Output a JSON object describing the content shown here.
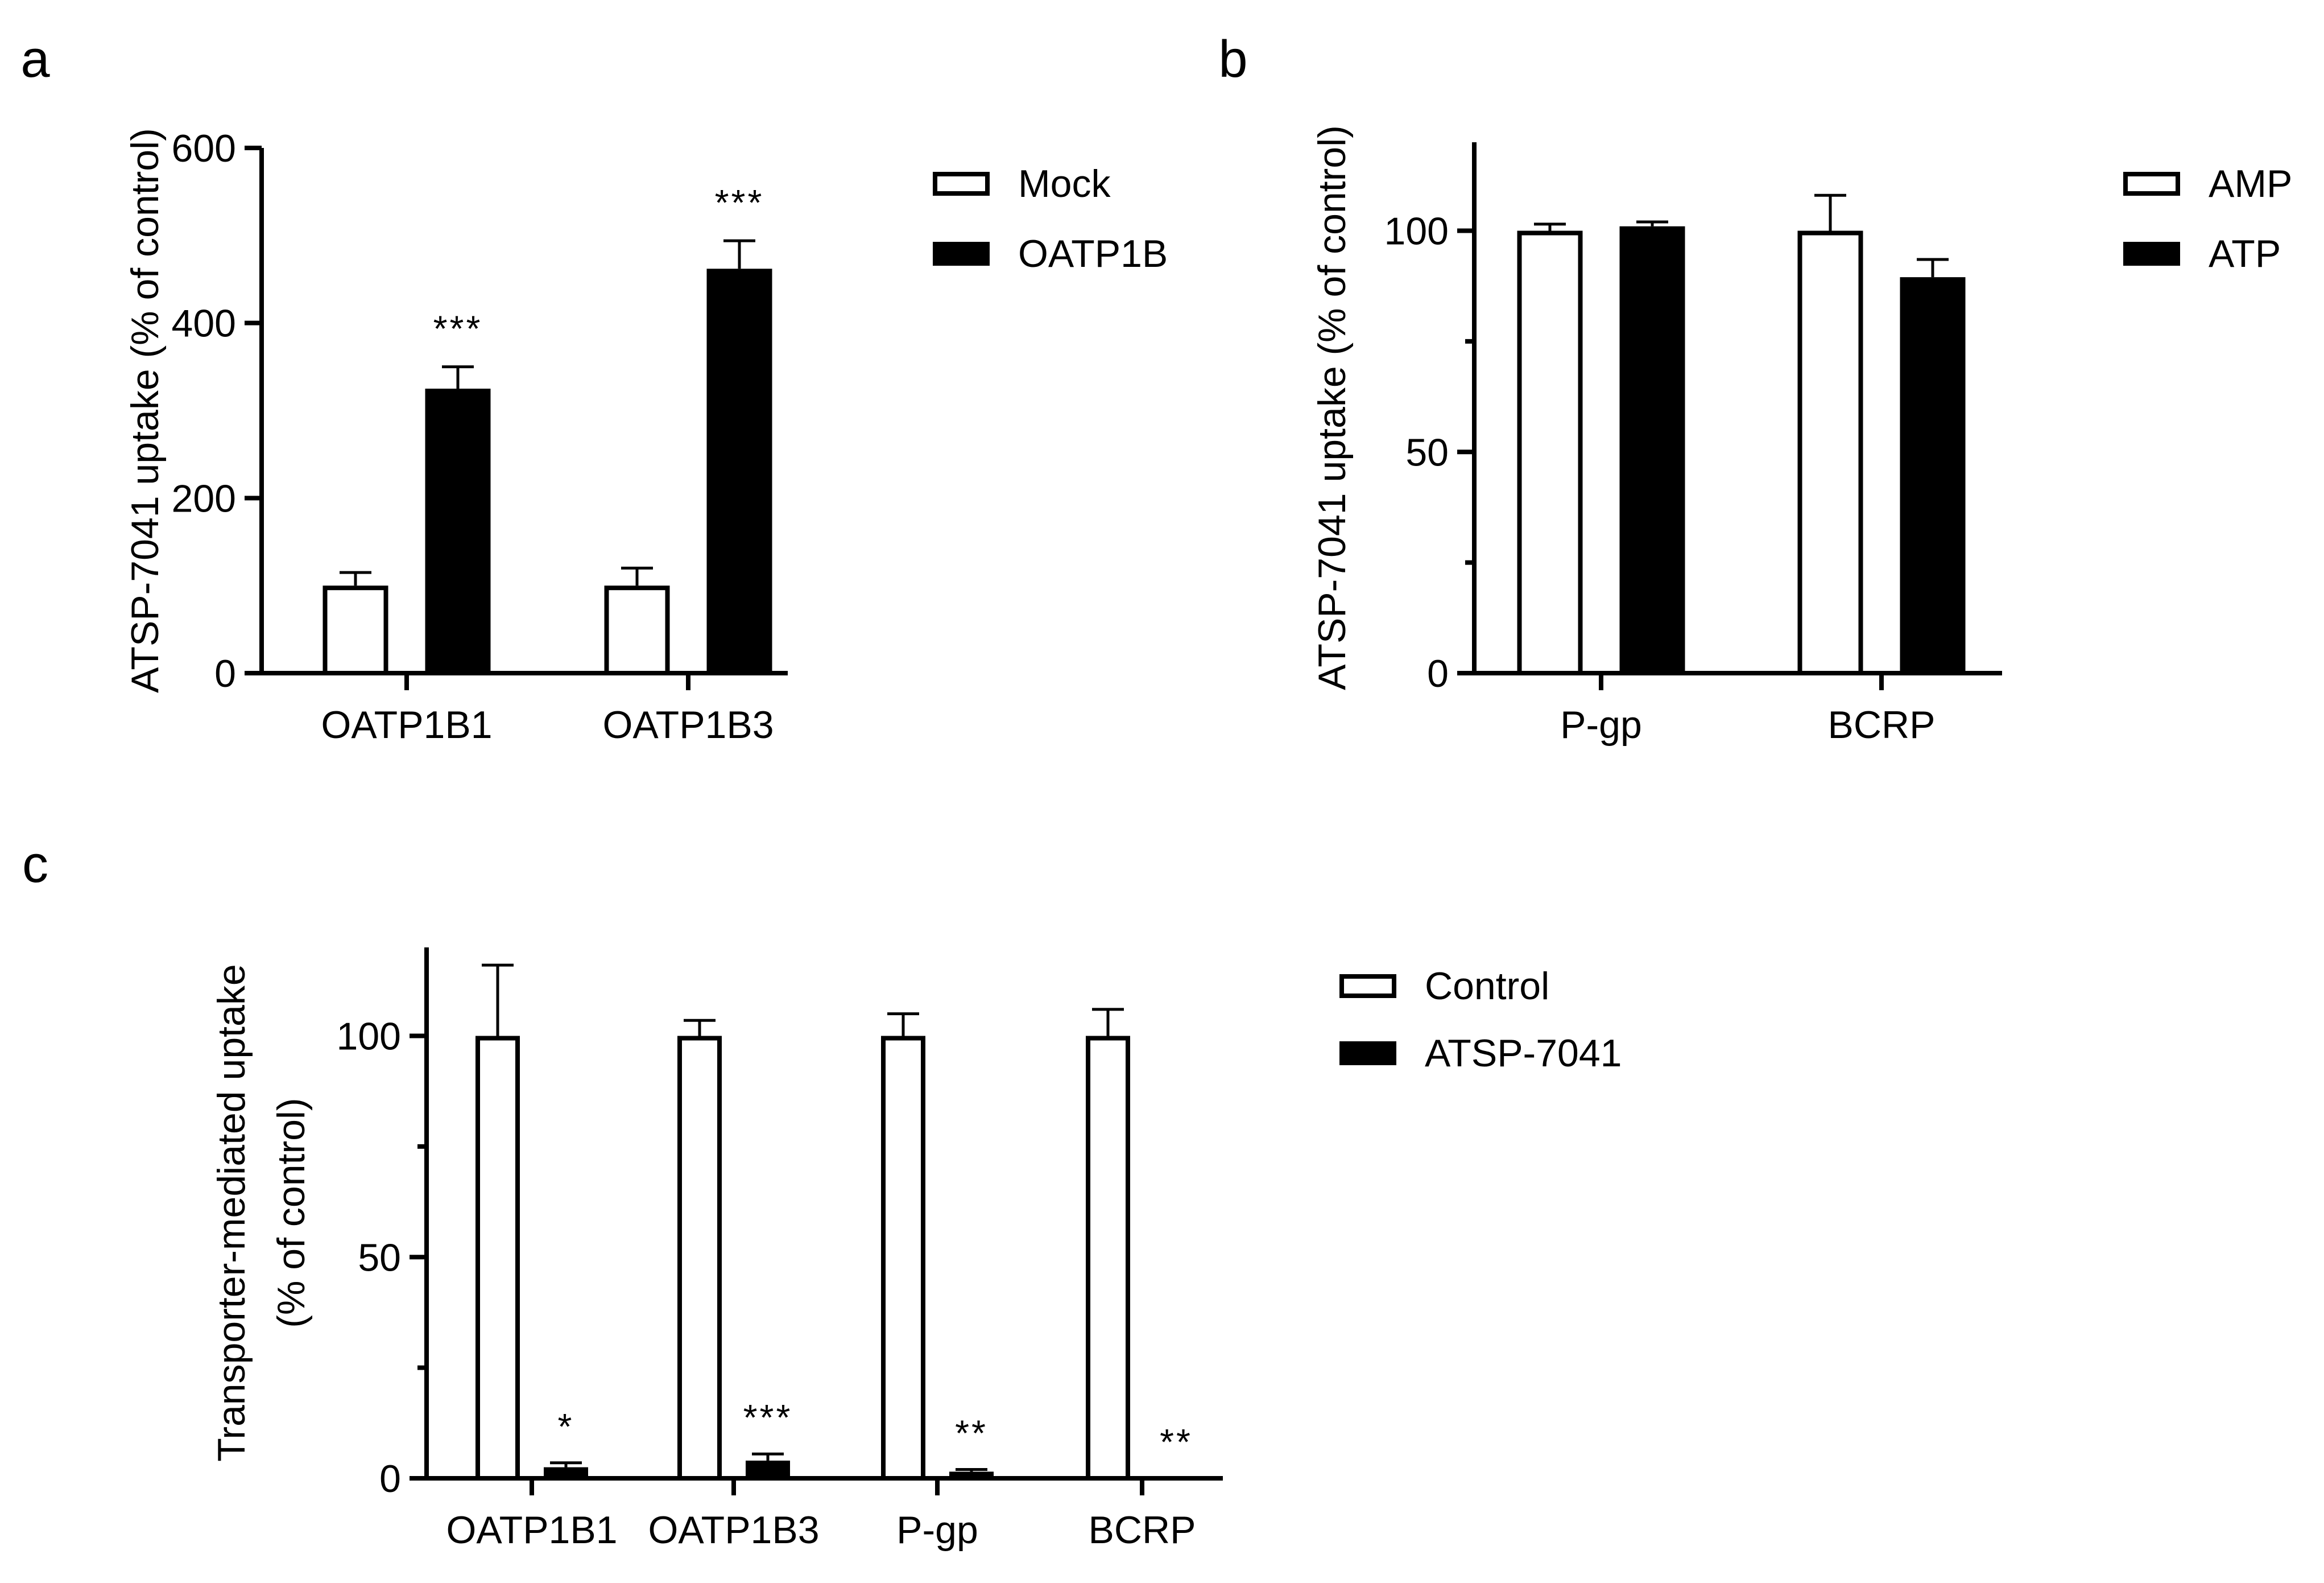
{
  "colors": {
    "axis": "#000000",
    "open_bar": "#ffffff",
    "filled_bar": "#000000",
    "background": "#ffffff"
  },
  "chart_data": [
    {
      "panel": "a",
      "type": "bar",
      "categories": [
        "OATP1B1",
        "OATP1B3"
      ],
      "series": [
        {
          "name": "Mock",
          "fill": "open",
          "values": [
            100,
            100
          ],
          "errors": [
            15,
            20
          ]
        },
        {
          "name": "OATP1B",
          "fill": "filled",
          "values": [
            325,
            462
          ],
          "errors": [
            25,
            32
          ]
        }
      ],
      "significance": [
        {
          "category_index": 0,
          "series_index": 1,
          "label": "***"
        },
        {
          "category_index": 1,
          "series_index": 1,
          "label": "***"
        }
      ],
      "ylabel": "ATSP-7041 uptake (% of control)",
      "xlabel": "",
      "ylim": [
        0,
        600
      ],
      "yticks": [
        0,
        200,
        400,
        600
      ],
      "minor_yticks": [],
      "legend": "top-right"
    },
    {
      "panel": "b",
      "type": "bar",
      "categories": [
        "P-gp",
        "BCRP"
      ],
      "series": [
        {
          "name": "AMP",
          "fill": "open",
          "values": [
            100,
            100
          ],
          "errors": [
            1.5,
            8
          ]
        },
        {
          "name": "ATP",
          "fill": "filled",
          "values": [
            101,
            89.5
          ],
          "errors": [
            1,
            4
          ]
        }
      ],
      "significance": [],
      "ylabel": "ATSP-7041 uptake (% of control)",
      "xlabel": "",
      "ylim": [
        0,
        120
      ],
      "yticks": [
        0,
        50,
        100
      ],
      "minor_yticks": [
        25,
        75
      ],
      "legend": "top-right"
    },
    {
      "panel": "c",
      "type": "bar",
      "categories": [
        "OATP1B1",
        "OATP1B3",
        "P-gp",
        "BCRP"
      ],
      "series": [
        {
          "name": "Control",
          "fill": "open",
          "values": [
            100,
            100,
            100,
            100
          ],
          "errors": [
            16,
            3.5,
            5,
            6
          ]
        },
        {
          "name": "ATSP-7041",
          "fill": "filled",
          "values": [
            2.5,
            4,
            1.5,
            0
          ],
          "errors": [
            1,
            1.5,
            0.5,
            0
          ]
        }
      ],
      "significance": [
        {
          "category_index": 0,
          "series_index": 1,
          "label": "*"
        },
        {
          "category_index": 1,
          "series_index": 1,
          "label": "***"
        },
        {
          "category_index": 2,
          "series_index": 1,
          "label": "**"
        },
        {
          "category_index": 3,
          "series_index": 1,
          "label": "**"
        }
      ],
      "ylabel": [
        "Transporter-mediated uptake",
        "(% of control)"
      ],
      "xlabel": "",
      "ylim": [
        0,
        120
      ],
      "yticks": [
        0,
        50,
        100
      ],
      "minor_yticks": [
        25,
        75
      ],
      "legend": "top-right"
    }
  ]
}
